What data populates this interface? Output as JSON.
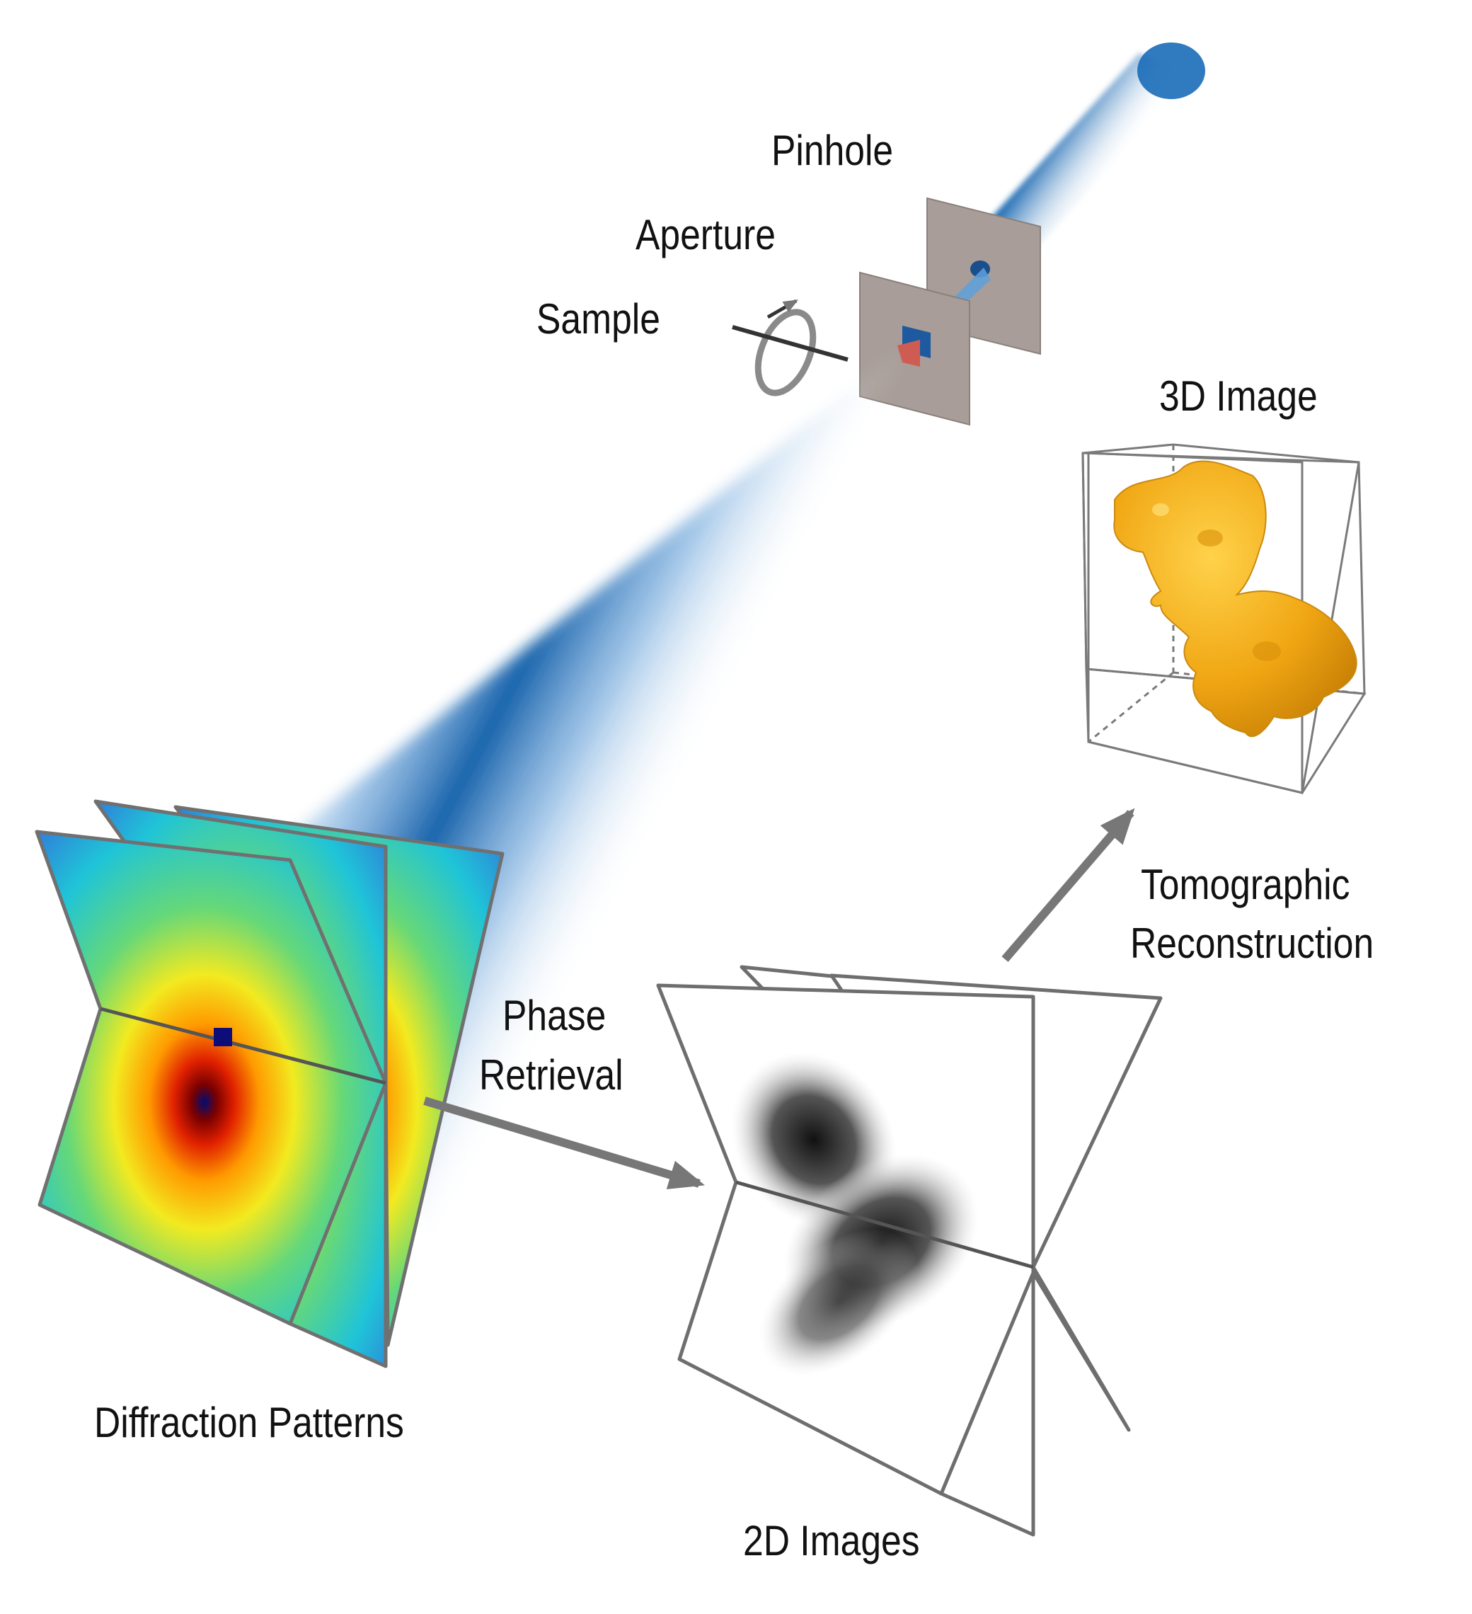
{
  "labels": {
    "pinhole": "Pinhole",
    "aperture": "Aperture",
    "sample": "Sample",
    "image_3d": "3D Image",
    "tomographic_line1": "Tomographic",
    "tomographic_line2": "Reconstruction",
    "phase_line1": "Phase",
    "phase_line2": "Retrieval",
    "diffraction": "Diffraction Patterns",
    "images_2d": "2D Images"
  },
  "colors": {
    "beam": "#1565b0",
    "plate": "#a89d98",
    "object": "#f0a613",
    "arrow": "#777777",
    "outline": "#6e6e6e"
  }
}
